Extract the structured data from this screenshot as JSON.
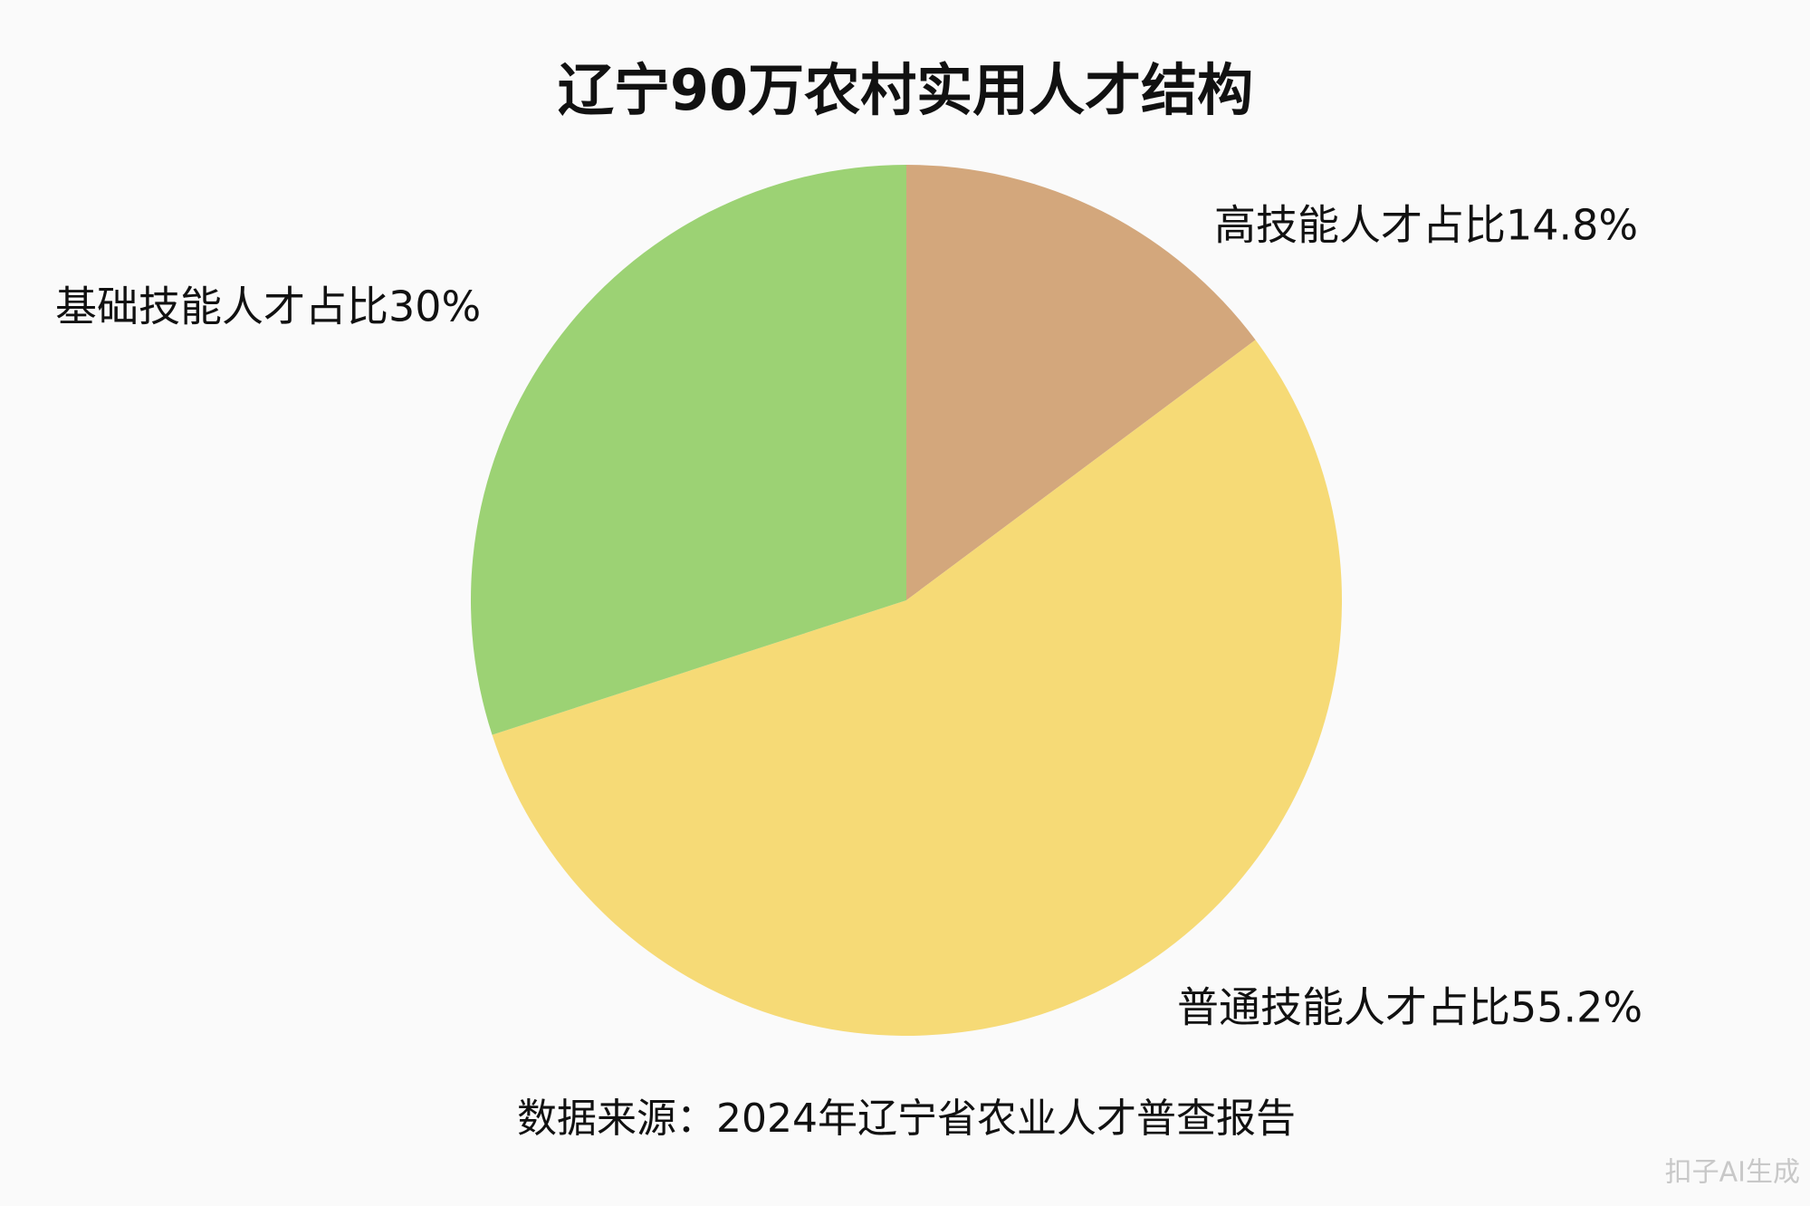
{
  "chart_data": {
    "type": "pie",
    "title": "辽宁90万农村实用人才结构",
    "values": [
      14.8,
      55.2,
      30
    ],
    "value_labels": [
      "高技能人才占比14.8%",
      "普通技能人才占比55.2%",
      "基础技能人才占比30%"
    ],
    "colors": [
      "#d3a77c",
      "#f6da76",
      "#9cd274"
    ],
    "source": "数据来源：2024年辽宁省农业人才普查报告",
    "watermark": "扣子AI生成"
  }
}
